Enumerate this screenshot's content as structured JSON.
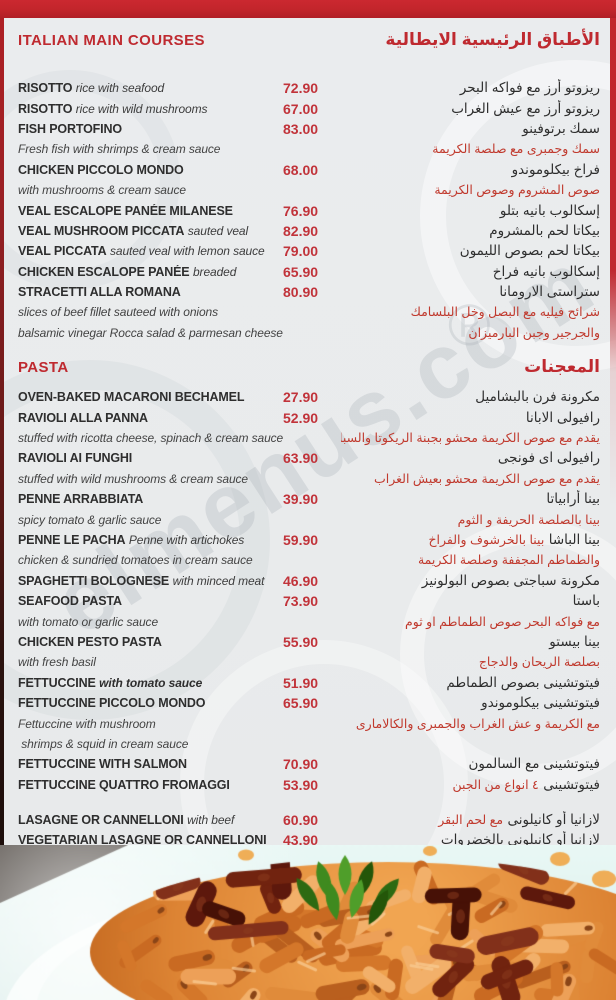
{
  "page": {
    "watermark": "elmenus.com",
    "watermark_reg": "®"
  },
  "colors": {
    "accent_red": "#c2262c",
    "heading_red": "#bf2a30",
    "price_red": "#c1333a",
    "arabic_desc_red": "#c0392d",
    "text_dark": "#2e2e2e",
    "background": "#e9ebec"
  },
  "sections": [
    {
      "id": "italian-main-courses",
      "title_en": "ITALIAN MAIN COURSES",
      "title_ar": "الأطباق الرئيسية الايطالية",
      "rows": [
        {
          "type": "item",
          "name": "RISOTTO",
          "desc_inline": "rice with seafood",
          "price": "72.90",
          "ar": "ريزوتو أرز مع فواكه البحر"
        },
        {
          "type": "item",
          "name": "RISOTTO",
          "desc_inline": "rice with wild mushrooms",
          "price": "67.00",
          "ar": "ريزوتو أرز مع عيش الغراب"
        },
        {
          "type": "item",
          "name": "FISH PORTOFINO",
          "price": "83.00",
          "ar": "سمك برتوفينو"
        },
        {
          "type": "desc",
          "en": "Fresh fish with shrimps & cream sauce",
          "ar_red": "سمك وجمبرى مع صلصة الكريمة"
        },
        {
          "type": "item",
          "name": "CHICKEN PICCOLO MONDO",
          "price": "68.00",
          "ar": "فراخ بيكلوموندو"
        },
        {
          "type": "desc",
          "en": "with mushrooms & cream sauce",
          "ar_red": "صوص المشروم وصوص الكريمة"
        },
        {
          "type": "item",
          "name": "VEAL ESCALOPE PANÉE MILANESE",
          "price": "76.90",
          "ar": "إسكالوب بانيه بتلو"
        },
        {
          "type": "item",
          "name": "VEAL MUSHROOM PICCATA",
          "desc_inline": "sauted veal",
          "price": "82.90",
          "ar": "بيكاتا لحم بالمشروم"
        },
        {
          "type": "item",
          "name": "VEAL PICCATA",
          "desc_inline": "sauted veal with lemon sauce",
          "price": "79.00",
          "ar": "بيكاتا لحم بصوص الليمون"
        },
        {
          "type": "item",
          "name": "CHICKEN ESCALOPE PANÉE",
          "desc_inline": "breaded",
          "price": "65.90",
          "ar": "إسكالوب بانيه فراخ"
        },
        {
          "type": "item",
          "name": "STRACETTI ALLA ROMANA",
          "price": "80.90",
          "ar": "ستراستى الارومانا"
        },
        {
          "type": "desc",
          "en": "slices of beef fillet sauteed with onions",
          "ar_red": "شرائح فيليه مع البصل وخل البلسامك"
        },
        {
          "type": "desc",
          "en": "balsamic vinegar Rocca salad & parmesan cheese",
          "ar_red": "والجرجير وجبن البارميزان"
        }
      ]
    },
    {
      "id": "pasta",
      "title_en": "PASTA",
      "title_ar": "المعجنات",
      "rows": [
        {
          "type": "item",
          "name": "OVEN-BAKED MACARONI BECHAMEL",
          "price": "27.90",
          "ar": "مكرونة فرن بالبشاميل"
        },
        {
          "type": "item",
          "name": "RAVIOLI ALLA PANNA",
          "price": "52.90",
          "ar": "رافيولى الابانا"
        },
        {
          "type": "desc",
          "en": "stuffed with ricotta cheese, spinach & cream sauce",
          "ar_red": "يقدم مع صوص الكريمة محشو بجبنة الريكوتا والسبانخ"
        },
        {
          "type": "item",
          "name": "RAVIOLI AI FUNGHI",
          "price": "63.90",
          "ar": "رافيولى اى فونجى"
        },
        {
          "type": "desc",
          "en": "stuffed with wild mushrooms & cream sauce",
          "ar_red": "يقدم مع صوص الكريمة محشو بعيش الغراب"
        },
        {
          "type": "item",
          "name": "PENNE ARRABBIATA",
          "price": "39.90",
          "ar": "بينا أرابياتا"
        },
        {
          "type": "desc",
          "en": "spicy tomato & garlic sauce",
          "ar_red": "بينا بالصلصة الحريفة و الثوم"
        },
        {
          "type": "item",
          "name": "PENNE LE PACHA",
          "desc_inline": "Penne with artichokes",
          "price": "59.90",
          "ar": "بينا الباشا",
          "ar_red": "بينا بالخرشوف والفراخ"
        },
        {
          "type": "desc",
          "en": "chicken & sundried tomatoes in cream sauce",
          "ar_red": "والطماطم المجففة وصلصة الكريمة"
        },
        {
          "type": "item",
          "name": "SPAGHETTI BOLOGNESE",
          "desc_inline": "with minced meat",
          "price": "46.90",
          "ar": "مكرونة سباجتى بصوص البولونيز"
        },
        {
          "type": "item",
          "name": "SEAFOOD PASTA",
          "price": "73.90",
          "ar": "باستا"
        },
        {
          "type": "desc",
          "en": "with tomato or garlic sauce",
          "ar_red": "مع فواكه البحر صوص الطماطم او ثوم"
        },
        {
          "type": "item",
          "name": "CHICKEN PESTO PASTA",
          "price": "55.90",
          "ar": "بينا بيستو"
        },
        {
          "type": "desc",
          "en": "with fresh basil",
          "ar_red": "بصلصة الريحان والدجاج"
        },
        {
          "type": "item",
          "name": "FETTUCCINE",
          "desc_inline": "with tomato sauce",
          "desc_bold": true,
          "price": "51.90",
          "ar": "فيتوتشينى بصوص الطماطم"
        },
        {
          "type": "item",
          "name": "FETTUCCINE PICCOLO MONDO",
          "price": "65.90",
          "ar": "فيتوتشينى بيكلوموندو"
        },
        {
          "type": "desc",
          "en": "Fettuccine with mushroom",
          "ar_red": "مع الكريمة و عش الغراب والجمبرى والكالامارى"
        },
        {
          "type": "desc",
          "en": " shrimps & squid in cream sauce"
        },
        {
          "type": "item",
          "name": "FETTUCCINE WITH SALMON",
          "price": "70.90",
          "ar": "فيتوتشينى مع السالمون"
        },
        {
          "type": "item",
          "name": "FETTUCCINE QUATTRO FROMAGGI",
          "price": "53.90",
          "ar": "فيتوتشينى",
          "ar_red": "٤ انواع من الجبن"
        },
        {
          "type": "item",
          "gap": true,
          "name": "LASAGNE OR CANNELLONI",
          "desc_inline": "with beef",
          "price": "60.90",
          "ar": "لازانيا أو كانيلونى",
          "ar_red": "مع لحم البقر"
        },
        {
          "type": "item",
          "name": "VEGETARIAN LASAGNE OR CANNELLONI",
          "price": "43.90",
          "ar": "لازانيا أو كانيلونى بالخضروات"
        }
      ]
    }
  ]
}
